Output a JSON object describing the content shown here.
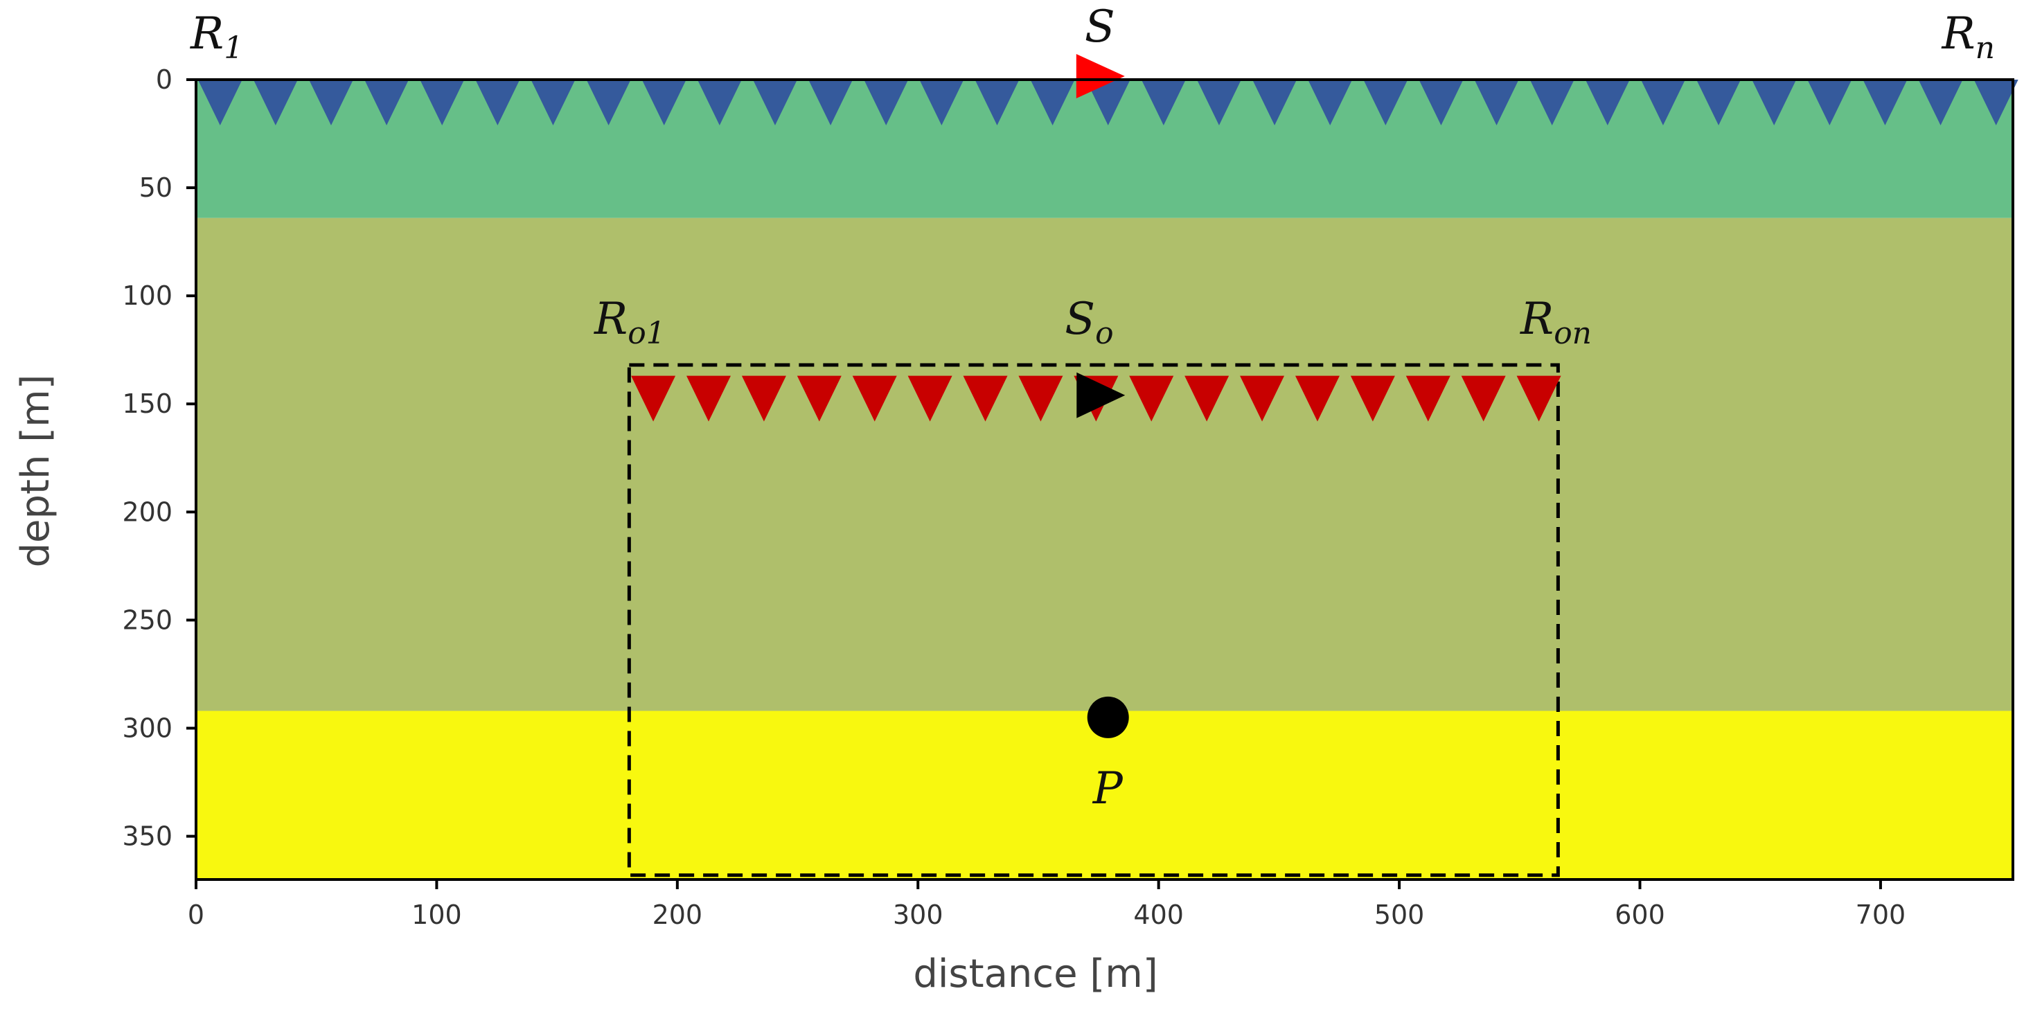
{
  "chart_data": {
    "type": "diagram",
    "xlabel": "distance [m]",
    "ylabel": "depth [m]",
    "xlim": [
      0,
      755
    ],
    "ylim": [
      0,
      370
    ],
    "y_inverted": true,
    "x_ticks": [
      "0",
      "100",
      "200",
      "300",
      "400",
      "500",
      "600",
      "700"
    ],
    "y_ticks": [
      "0",
      "50",
      "100",
      "150",
      "200",
      "250",
      "300",
      "350"
    ],
    "layers": [
      {
        "top": 0,
        "bottom": 64,
        "color": "#66bf88"
      },
      {
        "top": 64,
        "bottom": 292,
        "color": "#afbf6b"
      },
      {
        "top": 292,
        "bottom": 370,
        "color": "#f8f80f"
      }
    ],
    "surface_receivers": {
      "depth": 0,
      "x_start": 10,
      "x_end": 748,
      "count": 33,
      "color": "#355a9c",
      "first_label": {
        "base": "R",
        "sub": "1"
      },
      "last_label": {
        "base": "R",
        "sub": "n"
      }
    },
    "surface_source": {
      "x": 375,
      "depth": 0,
      "color": "#ff0000",
      "label": {
        "base": "S",
        "sub": ""
      }
    },
    "buried_receivers": {
      "depth": 137,
      "x_start": 190,
      "x_end": 558,
      "count": 17,
      "color": "#c80000",
      "first_label": {
        "base": "R",
        "sub": "o1"
      },
      "last_label": {
        "base": "R",
        "sub": "on"
      }
    },
    "buried_source": {
      "x": 376,
      "depth": 146,
      "color": "#000000",
      "label": {
        "base": "S",
        "sub": "o"
      }
    },
    "point": {
      "x": 379,
      "depth": 295,
      "color": "#000000",
      "label": "P"
    },
    "dashed_box": {
      "x0": 180,
      "x1": 566,
      "d0": 132,
      "d1": 368
    }
  }
}
